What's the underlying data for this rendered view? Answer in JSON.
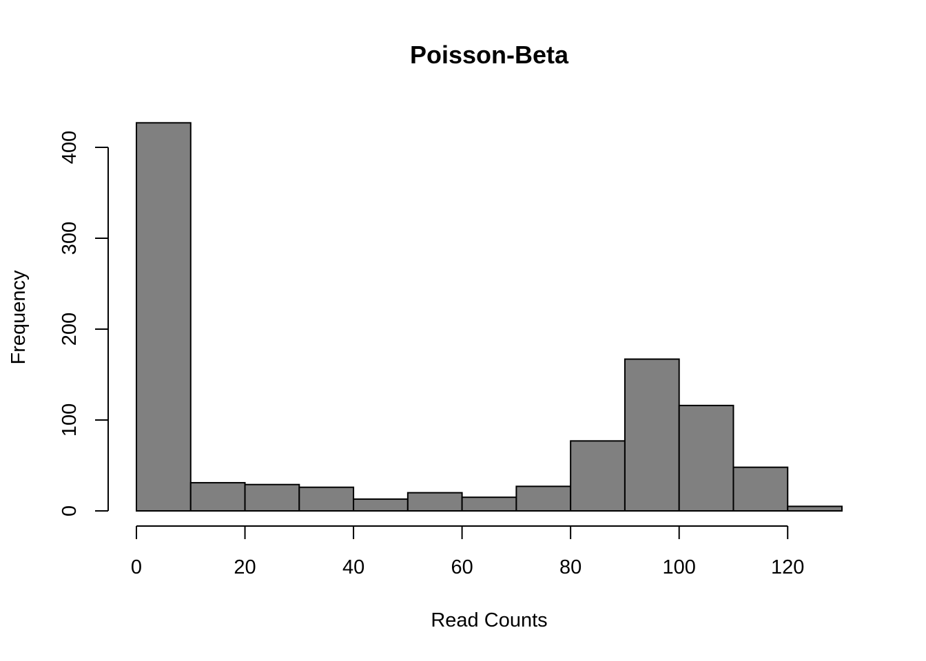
{
  "chart_data": {
    "type": "bar",
    "title": "Poisson-Beta",
    "xlabel": "Read Counts",
    "ylabel": "Frequency",
    "bin_edges": [
      0,
      10,
      20,
      30,
      40,
      50,
      60,
      70,
      80,
      90,
      100,
      110,
      120,
      130
    ],
    "values": [
      427,
      31,
      29,
      26,
      13,
      20,
      15,
      27,
      77,
      167,
      116,
      48,
      5
    ],
    "xlim": [
      0,
      130
    ],
    "ylim": [
      0,
      427
    ],
    "x_ticks": [
      0,
      20,
      40,
      60,
      80,
      100,
      120
    ],
    "y_ticks": [
      0,
      100,
      200,
      300,
      400
    ],
    "bar_color": "#808080",
    "grid": false
  }
}
